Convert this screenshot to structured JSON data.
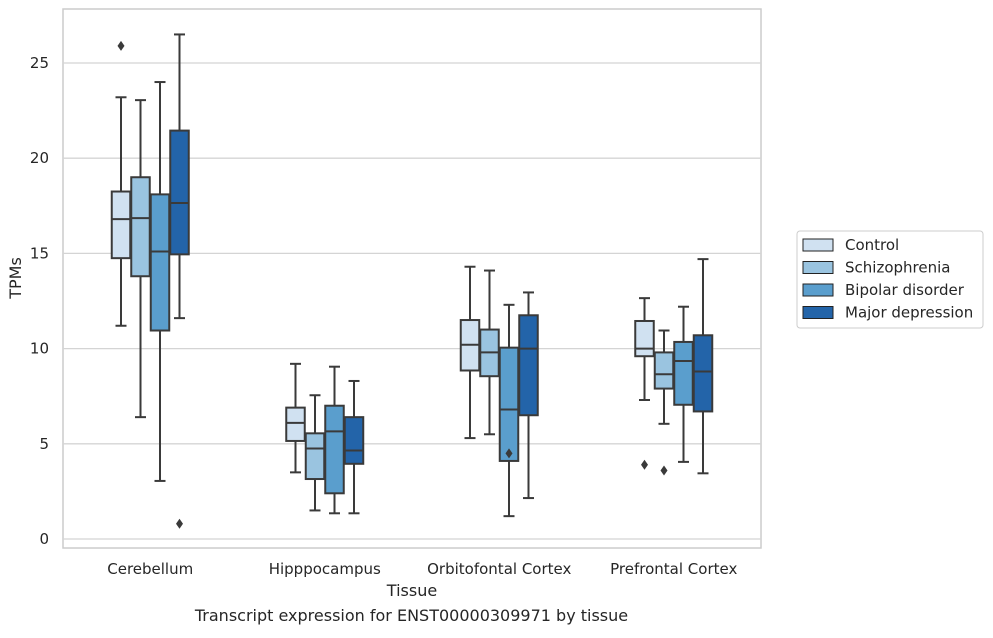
{
  "chart_data": {
    "type": "box",
    "categories": [
      "Cerebellum",
      "Hipppocampus",
      "Orbitofontal Cortex",
      "Prefrontal Cortex"
    ],
    "xlabel": "Tissue",
    "ylabel": "TPMs",
    "ylim": [
      -0.4,
      27.6
    ],
    "yticks": [
      0,
      5,
      10,
      15,
      20,
      25
    ],
    "grid": "horizontal",
    "legend_position": "right",
    "series": [
      {
        "name": "Control",
        "color": "#d0e1f1",
        "boxes": [
          {
            "whisker_low": 11.2,
            "q1": 14.75,
            "median": 16.8,
            "q3": 18.25,
            "whisker_high": 23.2,
            "outliers": [
              25.9
            ]
          },
          {
            "whisker_low": 3.5,
            "q1": 5.15,
            "median": 6.1,
            "q3": 6.9,
            "whisker_high": 9.2,
            "outliers": []
          },
          {
            "whisker_low": 5.3,
            "q1": 8.85,
            "median": 10.2,
            "q3": 11.5,
            "whisker_high": 14.3,
            "outliers": []
          },
          {
            "whisker_low": 7.3,
            "q1": 9.6,
            "median": 10.0,
            "q3": 11.45,
            "whisker_high": 12.65,
            "outliers": [
              3.9
            ]
          }
        ]
      },
      {
        "name": "Schizophrenia",
        "color": "#9ac4e0",
        "boxes": [
          {
            "whisker_low": 6.4,
            "q1": 13.8,
            "median": 16.85,
            "q3": 19.0,
            "whisker_high": 23.05,
            "outliers": []
          },
          {
            "whisker_low": 1.5,
            "q1": 3.15,
            "median": 4.75,
            "q3": 5.55,
            "whisker_high": 7.55,
            "outliers": []
          },
          {
            "whisker_low": 5.5,
            "q1": 8.55,
            "median": 9.8,
            "q3": 11.0,
            "whisker_high": 14.1,
            "outliers": []
          },
          {
            "whisker_low": 6.05,
            "q1": 7.9,
            "median": 8.65,
            "q3": 9.8,
            "whisker_high": 10.95,
            "outliers": [
              3.6
            ]
          }
        ]
      },
      {
        "name": "Bipolar disorder",
        "color": "#5a9ecd",
        "boxes": [
          {
            "whisker_low": 3.05,
            "q1": 10.95,
            "median": 15.1,
            "q3": 18.1,
            "whisker_high": 24.0,
            "outliers": []
          },
          {
            "whisker_low": 1.35,
            "q1": 2.4,
            "median": 5.65,
            "q3": 7.0,
            "whisker_high": 9.05,
            "outliers": []
          },
          {
            "whisker_low": 1.2,
            "q1": 4.1,
            "median": 6.8,
            "q3": 10.05,
            "whisker_high": 12.3,
            "outliers": [
              4.5
            ]
          },
          {
            "whisker_low": 4.05,
            "q1": 7.05,
            "median": 9.35,
            "q3": 10.35,
            "whisker_high": 12.2,
            "outliers": []
          }
        ]
      },
      {
        "name": "Major depression",
        "color": "#2364a9",
        "boxes": [
          {
            "whisker_low": 11.6,
            "q1": 14.95,
            "median": 17.65,
            "q3": 21.45,
            "whisker_high": 26.5,
            "outliers": [
              0.8
            ]
          },
          {
            "whisker_low": 1.35,
            "q1": 3.95,
            "median": 4.65,
            "q3": 6.4,
            "whisker_high": 8.3,
            "outliers": []
          },
          {
            "whisker_low": 2.15,
            "q1": 6.5,
            "median": 10.0,
            "q3": 11.75,
            "whisker_high": 12.95,
            "outliers": []
          },
          {
            "whisker_low": 3.45,
            "q1": 6.7,
            "median": 8.8,
            "q3": 10.7,
            "whisker_high": 14.7,
            "outliers": []
          }
        ]
      }
    ],
    "caption": "Transcript expression for ENST00000309971 by tissue"
  }
}
